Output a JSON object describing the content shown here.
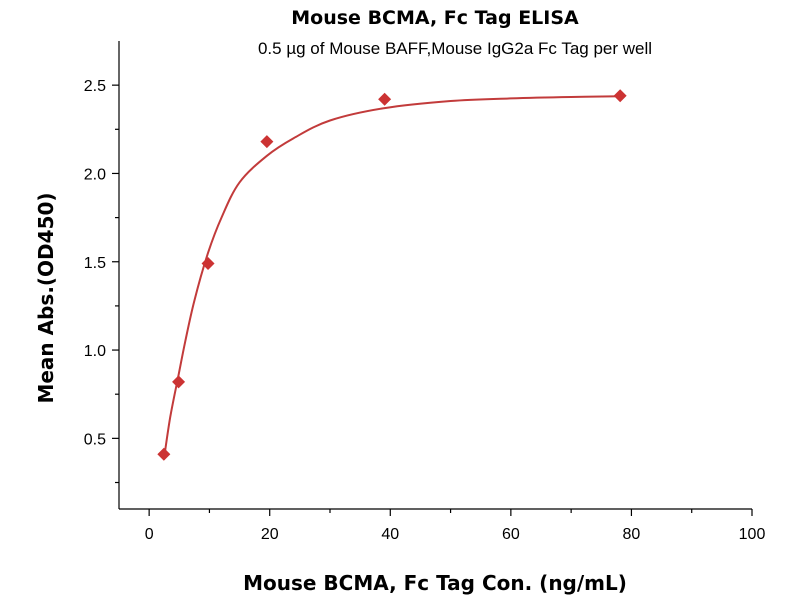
{
  "chart_data": {
    "type": "scatter",
    "title": "Mouse BCMA, Fc Tag ELISA",
    "subtitle": "0.5 µg of Mouse BAFF,Mouse IgG2a Fc Tag per well",
    "xlabel": "Mouse BCMA, Fc Tag Con. (ng/mL)",
    "ylabel": "Mean Abs.(OD450)",
    "xlim": [
      -5,
      100
    ],
    "ylim": [
      0.1,
      2.75
    ],
    "xticks": [
      0,
      20,
      40,
      60,
      80,
      100
    ],
    "yticks": [
      0.5,
      1.0,
      1.5,
      2.0,
      2.5
    ],
    "xtick_labels": [
      "0",
      "20",
      "40",
      "60",
      "80",
      "100"
    ],
    "ytick_labels": [
      "0.5",
      "1.0",
      "1.5",
      "2.0",
      "2.5"
    ],
    "series": [
      {
        "name": "Mouse BCMA, Fc Tag",
        "marker": "diamond",
        "color": "#cc3333",
        "x": [
          2.44,
          4.88,
          9.77,
          19.53,
          39.06,
          78.13
        ],
        "y": [
          0.41,
          0.82,
          1.49,
          2.18,
          2.42,
          2.44
        ]
      }
    ],
    "fit_curve": {
      "color": "#c23b3b",
      "x": [
        2.44,
        3.5,
        4.88,
        6,
        7.5,
        9.77,
        12,
        15,
        19.53,
        24,
        30,
        39.06,
        50,
        60,
        70,
        78.13
      ],
      "y": [
        0.38,
        0.62,
        0.86,
        1.05,
        1.28,
        1.55,
        1.75,
        1.95,
        2.1,
        2.2,
        2.3,
        2.37,
        2.41,
        2.425,
        2.433,
        2.437
      ]
    },
    "grid": false,
    "legend": "none"
  }
}
